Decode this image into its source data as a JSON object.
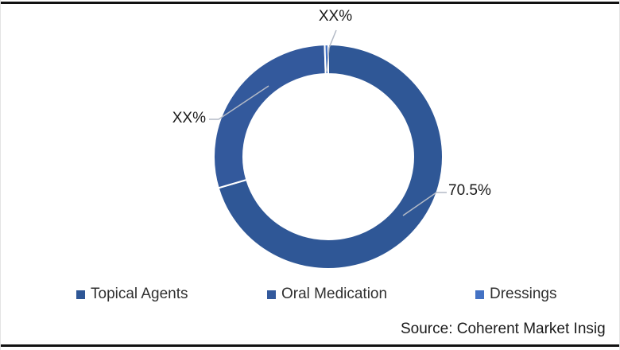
{
  "frame": {
    "background": "#ffffff",
    "border_color": "#111111"
  },
  "chart_data": {
    "type": "pie",
    "subtype": "donut",
    "title": "",
    "categories": [
      "Topical Agents",
      "Oral Medication",
      "Dressings"
    ],
    "labels": [
      "70.5%",
      "XX%",
      "XX%"
    ],
    "values_rendered": [
      70.5,
      29.0,
      0.5
    ],
    "colors": [
      "#2f5796",
      "#33599c",
      "#4472c4"
    ],
    "slice_border_color": "#ffffff",
    "hole_ratio": 0.74,
    "legend_position": "bottom",
    "legend": [
      "Topical Agents",
      "Oral Medication",
      "Dressings"
    ],
    "annotations": {
      "top": "XX%",
      "left": "XX%",
      "right": "70.5%"
    },
    "leader_line_color": "#b3bac6"
  },
  "source_note": "Source: Coherent Market Insig"
}
